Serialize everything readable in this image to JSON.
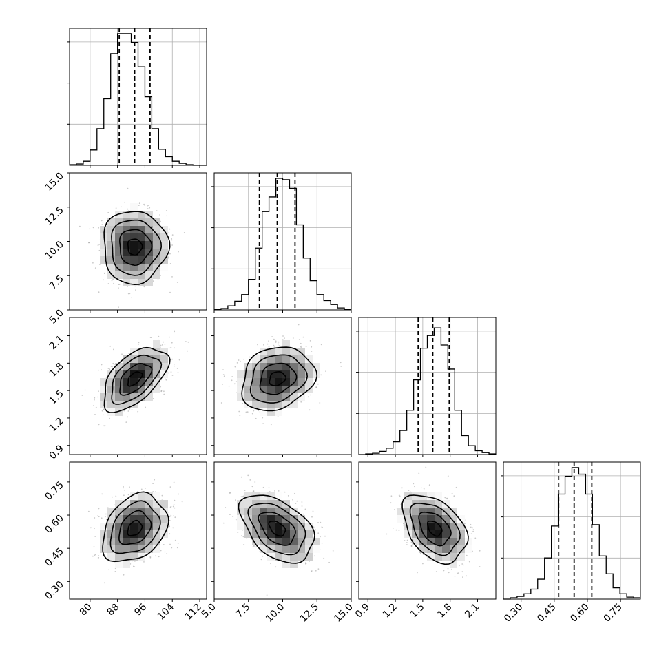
{
  "chart_data": {
    "type": "corner",
    "grid": true,
    "parameters": [
      {
        "key": "p0",
        "range": [
          74,
          114
        ],
        "ticks": [
          80,
          88,
          96,
          104,
          112
        ],
        "tick_labels": [
          "80",
          "88",
          "96",
          "104",
          "112"
        ],
        "quantiles": [
          88.5,
          93.0,
          97.5
        ],
        "hist_bins": [
          74,
          76,
          78,
          80,
          82,
          84,
          86,
          88,
          90,
          92,
          94,
          96,
          98,
          100,
          102,
          104,
          106,
          108,
          110,
          112,
          114
        ],
        "hist_counts": [
          1,
          2,
          6,
          23,
          55,
          100,
          168,
          198,
          198,
          185,
          148,
          103,
          55,
          24,
          13,
          6,
          3,
          1,
          0,
          0
        ],
        "hist_max": 200
      },
      {
        "key": "p1",
        "range": [
          5.0,
          15.0
        ],
        "ticks": [
          5.0,
          7.5,
          10.0,
          12.5,
          15.0
        ],
        "tick_labels": [
          "5.0",
          "7.5",
          "10.0",
          "12.5",
          "15.0"
        ],
        "quantiles": [
          8.3,
          9.6,
          10.9
        ],
        "hist_bins": [
          5.0,
          5.5,
          6.0,
          6.5,
          7.0,
          7.5,
          8.0,
          8.5,
          9.0,
          9.5,
          10.0,
          10.5,
          11.0,
          11.5,
          12.0,
          12.5,
          13.0,
          13.5,
          14.0,
          14.5,
          15.0
        ],
        "hist_counts": [
          1,
          2,
          6,
          13,
          23,
          46,
          93,
          148,
          170,
          198,
          196,
          183,
          128,
          78,
          44,
          23,
          14,
          8,
          3,
          1
        ],
        "hist_max": 200
      },
      {
        "key": "p2",
        "range": [
          0.8,
          2.3
        ],
        "ticks": [
          0.9,
          1.2,
          1.5,
          1.8,
          2.1
        ],
        "tick_labels": [
          "0.9",
          "1.2",
          "1.5",
          "1.8",
          "2.1"
        ],
        "quantiles": [
          1.45,
          1.61,
          1.79
        ],
        "hist_bins": [
          0.8,
          0.875,
          0.95,
          1.025,
          1.1,
          1.175,
          1.25,
          1.325,
          1.4,
          1.475,
          1.55,
          1.625,
          1.7,
          1.775,
          1.85,
          1.925,
          2.0,
          2.075,
          2.15,
          2.225,
          2.3
        ],
        "hist_counts": [
          0,
          1,
          2,
          5,
          10,
          20,
          38,
          70,
          118,
          168,
          188,
          200,
          173,
          135,
          70,
          30,
          14,
          6,
          3,
          1
        ],
        "hist_max": 210
      },
      {
        "key": "p3",
        "range": [
          0.22,
          0.84
        ],
        "ticks": [
          0.3,
          0.45,
          0.6,
          0.75
        ],
        "tick_labels": [
          "0.30",
          "0.45",
          "0.60",
          "0.75"
        ],
        "quantiles": [
          0.47,
          0.54,
          0.62
        ],
        "hist_bins": [
          0.22,
          0.251,
          0.282,
          0.313,
          0.344,
          0.375,
          0.406,
          0.437,
          0.468,
          0.499,
          0.53,
          0.561,
          0.592,
          0.623,
          0.654,
          0.685,
          0.716,
          0.747,
          0.778,
          0.809,
          0.84
        ],
        "hist_counts": [
          0,
          2,
          4,
          8,
          15,
          30,
          62,
          110,
          158,
          185,
          198,
          188,
          158,
          112,
          65,
          38,
          17,
          8,
          3,
          2
        ],
        "hist_max": 200
      }
    ],
    "pairs": [
      {
        "x": 0,
        "y": 1,
        "corr": 0.0
      },
      {
        "x": 0,
        "y": 2,
        "corr": 0.55
      },
      {
        "x": 1,
        "y": 2,
        "corr": 0.2
      },
      {
        "x": 0,
        "y": 3,
        "corr": 0.3
      },
      {
        "x": 1,
        "y": 3,
        "corr": -0.45
      },
      {
        "x": 2,
        "y": 3,
        "corr": -0.4
      }
    ],
    "means": [
      93.0,
      9.6,
      1.63,
      0.54
    ],
    "sigmas": [
      4.6,
      1.3,
      0.17,
      0.075
    ]
  }
}
